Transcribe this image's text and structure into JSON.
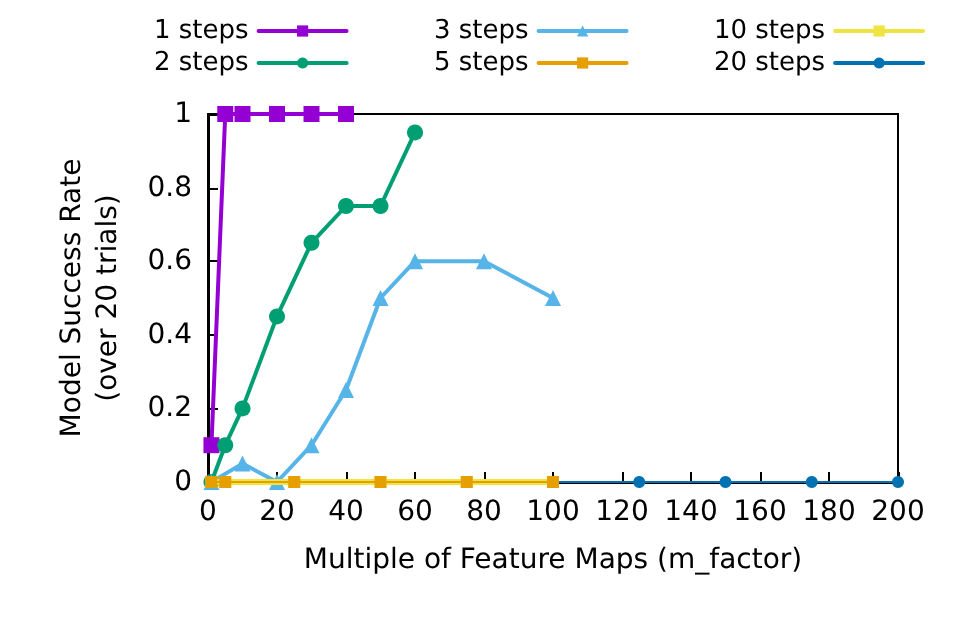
{
  "chart_data": {
    "type": "line",
    "xlabel": "Multiple of Feature Maps (m_factor)",
    "ylabel": "Model Success Rate\n(over 20 trials)",
    "xlim": [
      0,
      200
    ],
    "xticks": [
      0,
      20,
      40,
      60,
      80,
      100,
      120,
      140,
      160,
      180,
      200
    ],
    "ylim": [
      0,
      1
    ],
    "yticks": [
      0,
      0.2,
      0.4,
      0.6,
      0.8,
      1
    ],
    "grid": false,
    "legend": "top",
    "series": [
      {
        "name": "1 steps",
        "color": "#9400d3",
        "marker": "square",
        "x": [
          1,
          5,
          10,
          20,
          30,
          40
        ],
        "values": [
          0.1,
          1,
          1,
          1,
          1,
          1
        ]
      },
      {
        "name": "2 steps",
        "color": "#009e73",
        "marker": "circle",
        "x": [
          1,
          5,
          10,
          20,
          30,
          40,
          50,
          60
        ],
        "values": [
          0,
          0.1,
          0.2,
          0.45,
          0.65,
          0.75,
          0.75,
          0.95
        ]
      },
      {
        "name": "3 steps",
        "color": "#56b4e9",
        "marker": "triangle",
        "x": [
          1,
          10,
          20,
          30,
          40,
          50,
          60,
          80,
          100
        ],
        "values": [
          0,
          0.05,
          0,
          0.1,
          0.25,
          0.5,
          0.6,
          0.6,
          0.5
        ]
      },
      {
        "name": "5 steps",
        "color": "#e69f00",
        "marker": "square",
        "x": [
          1,
          5,
          25,
          50,
          75,
          100
        ],
        "values": [
          0,
          0,
          0,
          0,
          0,
          0
        ]
      },
      {
        "name": "10 steps",
        "color": "#f0e442",
        "marker": "square",
        "x": [
          1,
          5,
          25,
          50,
          75,
          100
        ],
        "values": [
          0,
          0,
          0,
          0,
          0,
          0
        ]
      },
      {
        "name": "20 steps",
        "color": "#0072b2",
        "marker": "circle",
        "x": [
          1,
          5,
          25,
          50,
          75,
          100,
          125,
          150,
          175,
          200
        ],
        "values": [
          0,
          0,
          0,
          0,
          0,
          0,
          0,
          0,
          0,
          0
        ]
      }
    ]
  }
}
